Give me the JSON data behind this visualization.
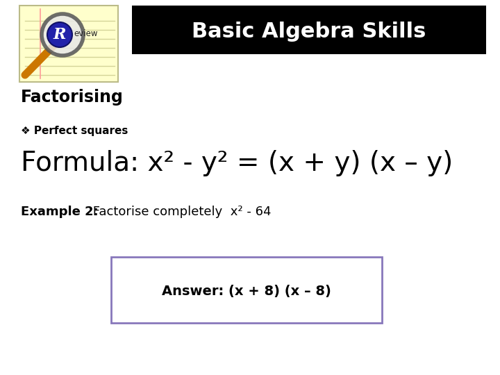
{
  "title": "Basic Algebra Skills",
  "title_bg": "#000000",
  "title_color": "#ffffff",
  "title_fontsize": 22,
  "section_title": "Factorising",
  "section_fontsize": 17,
  "bullet_label": "❖ Perfect squares",
  "bullet_fontsize": 11,
  "formula_text": "Formula: x² - y² = (x + y) (x – y)",
  "formula_fontsize": 28,
  "example_bold": "Example 2:",
  "example_rest": " Factorise completely  x² - 64",
  "example_fontsize": 13,
  "answer_text": "Answer: (x + 8) (x – 8)",
  "answer_fontsize": 14,
  "answer_box_color": "#8878bb",
  "bg_color": "#ffffff",
  "notebook_lines_color": "#d4d498",
  "notebook_bg": "#ffffcc",
  "notebook_edge": "#bbbb88"
}
